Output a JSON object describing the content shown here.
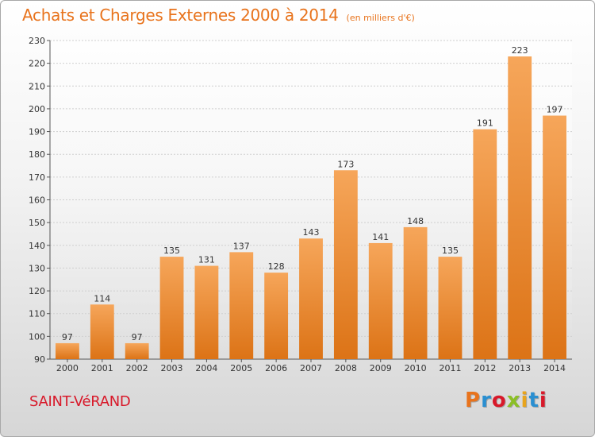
{
  "header": {
    "title": "Achats et Charges Externes 2000 à 2014",
    "subtitle": "(en milliers d'€)"
  },
  "footer": {
    "place": "SAINT-VéRAND",
    "logo_text": "Proxiti",
    "logo_colors": [
      "#e8731c",
      "#2a8fd1",
      "#d8192a",
      "#8bbf26",
      "#e8a41c",
      "#2a8fd1",
      "#d8192a"
    ]
  },
  "chart_data": {
    "type": "bar",
    "title": "Achats et Charges Externes 2000 à 2014",
    "subtitle": "(en milliers d'€)",
    "categories": [
      "2000",
      "2001",
      "2002",
      "2003",
      "2004",
      "2005",
      "2006",
      "2007",
      "2008",
      "2009",
      "2010",
      "2011",
      "2012",
      "2013",
      "2014"
    ],
    "values": [
      97,
      114,
      97,
      135,
      131,
      137,
      128,
      143,
      173,
      141,
      148,
      135,
      191,
      223,
      197
    ],
    "ylim": [
      90,
      230
    ],
    "yticks": [
      90,
      100,
      110,
      120,
      130,
      140,
      150,
      160,
      170,
      180,
      190,
      200,
      210,
      220,
      230
    ],
    "grid": true,
    "bar_color": "#f0922f",
    "xlabel": "",
    "ylabel": ""
  }
}
